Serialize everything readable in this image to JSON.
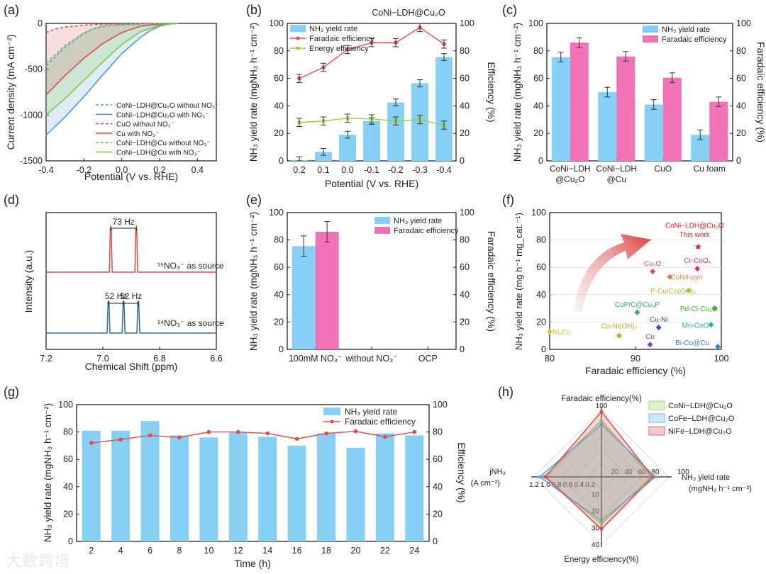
{
  "watermark": "大数跨境",
  "chart_data": [
    {
      "panel": "(a)",
      "type": "line",
      "xlabel": "Potential (V vs. RHE)",
      "ylabel": "Current density (mA cm⁻²)",
      "xlim": [
        -0.4,
        0.5
      ],
      "ylim": [
        -1500,
        0
      ],
      "xticks": [
        "-0.4",
        "-0.2",
        "0.0",
        "0.2",
        "0.4"
      ],
      "yticks": [
        "0",
        "-500",
        "-1000",
        "-1500"
      ],
      "series": [
        {
          "name": "CoNi−LDH@Cu₂O without NO₃⁻",
          "color": "#4a9be0",
          "dash": true,
          "x": [
            -0.4,
            -0.3,
            -0.2,
            -0.15,
            -0.1,
            0.0,
            0.1,
            0.2,
            0.3
          ],
          "y": [
            -460,
            -260,
            -110,
            -60,
            -30,
            -15,
            -8,
            -3,
            0
          ]
        },
        {
          "name": "CoNi−LDH@Cu₂O with NO₃⁻",
          "color": "#4a9be0",
          "dash": false,
          "x": [
            -0.4,
            -0.3,
            -0.2,
            -0.1,
            0.0,
            0.1,
            0.15,
            0.2,
            0.25,
            0.3
          ],
          "y": [
            -1220,
            -1020,
            -800,
            -560,
            -330,
            -150,
            -80,
            -30,
            -8,
            0
          ]
        },
        {
          "name": "CuO without NO₃⁻",
          "color": "#e04a4a",
          "dash": true,
          "x": [
            -0.4,
            -0.35,
            -0.3,
            -0.2,
            -0.1,
            0.0,
            0.1,
            0.2,
            0.3
          ],
          "y": [
            -100,
            -60,
            -40,
            -20,
            -10,
            -5,
            -2,
            -1,
            0
          ]
        },
        {
          "name": "Cu with NO₃⁻",
          "color": "#e04a4a",
          "dash": false,
          "x": [
            -0.4,
            -0.3,
            -0.2,
            -0.1,
            0.0,
            0.1,
            0.2,
            0.3
          ],
          "y": [
            -780,
            -570,
            -380,
            -220,
            -100,
            -30,
            -8,
            0
          ]
        },
        {
          "name": "CoNi−LDH@Cu without NO₃⁻",
          "color": "#7cc63a",
          "dash": true,
          "x": [
            -0.4,
            -0.3,
            -0.2,
            -0.15,
            -0.1,
            0.0,
            0.1,
            0.2,
            0.3
          ],
          "y": [
            -430,
            -240,
            -100,
            -55,
            -28,
            -12,
            -6,
            -2,
            0
          ]
        },
        {
          "name": "CoNi−LDH@Cu with NO₃⁻",
          "color": "#7cc63a",
          "dash": false,
          "x": [
            -0.4,
            -0.3,
            -0.2,
            -0.1,
            0.0,
            0.1,
            0.2,
            0.25,
            0.3
          ],
          "y": [
            -1000,
            -820,
            -620,
            -420,
            -230,
            -90,
            -20,
            -5,
            0
          ]
        }
      ]
    },
    {
      "panel": "(b)",
      "type": "bar",
      "title": "CoNi−LDH@Cu₂O",
      "xlabel": "Potential (V vs. RHE)",
      "ylabel": "NH₃ yield rate (mgNH₃ h⁻¹ cm⁻²)",
      "y2label": "Efficiency (%)",
      "categories": [
        "0.2",
        "0.1",
        "0.0",
        "-0.1",
        "-0.2",
        "-0.3",
        "-0.4"
      ],
      "ylim": [
        0,
        100
      ],
      "y2lim": [
        0,
        100
      ],
      "series": [
        {
          "name": "NH₃ yield rate",
          "color": "#86cff5",
          "values": [
            0.5,
            6.5,
            19,
            29,
            42.5,
            56.5,
            75.5
          ]
        },
        {
          "name": "Faradaic efficiency",
          "color": "#e84a4a",
          "values": [
            60,
            68,
            81,
            86,
            86,
            97,
            85
          ]
        },
        {
          "name": "Energy efficiency",
          "color": "#9ad43a",
          "values": [
            28,
            29,
            31,
            30.5,
            29,
            30,
            26
          ]
        }
      ]
    },
    {
      "panel": "(c)",
      "type": "bar",
      "ylabel": "NH₃ yield rate (mgNH₃ h⁻¹ cm⁻²)",
      "y2label": "Faradaic efficiency (%)",
      "ylim": [
        0,
        100
      ],
      "y2lim": [
        0,
        100
      ],
      "categories": [
        "CoNi−LDH|@Cu₂O",
        "CoNi−LDH|@Cu",
        "CuO",
        "Cu foam"
      ],
      "series": [
        {
          "name": "NH₃ yield rate",
          "color": "#86cff5",
          "values": [
            75.5,
            50,
            41,
            19
          ]
        },
        {
          "name": "Faradaic efficiency",
          "color": "#f272b8",
          "values": [
            86,
            76,
            60.5,
            43
          ]
        }
      ]
    },
    {
      "panel": "(d)",
      "type": "line",
      "xlabel": "Chemical Shift (ppm)",
      "ylabel": "Intensity (a.u.)",
      "xlim": [
        7.2,
        6.6
      ],
      "xticks": [
        "7.2",
        "7.0",
        "6.8",
        "6.6"
      ],
      "labels": {
        "top": "¹⁵NO₃⁻ as source",
        "bottom": "¹⁴NO₃⁻ as source",
        "split_top": "73 Hz",
        "split_bottom": [
          "52 Hz",
          "52 Hz"
        ]
      },
      "series": [
        {
          "name": "¹⁵NO₃⁻",
          "color": "#e04a4a",
          "peaks": [
            6.972,
            6.882
          ]
        },
        {
          "name": "¹⁴NO₃⁻",
          "color": "#2f6fa8",
          "peaks": [
            6.98,
            6.927,
            6.875
          ]
        }
      ]
    },
    {
      "panel": "(e)",
      "type": "bar",
      "ylabel": "NH₃ yield rate (mgNH₃ h⁻¹ cm⁻²)",
      "y2label": "Faradaic efficiency (%)",
      "ylim": [
        0,
        100
      ],
      "y2lim": [
        0,
        100
      ],
      "categories": [
        "100mM NO₃⁻",
        "without NO₃⁻",
        "OCP"
      ],
      "series": [
        {
          "name": "NH₃ yield rate",
          "color": "#86cff5",
          "values": [
            75.5,
            0,
            0
          ]
        },
        {
          "name": "Faradaic efficiency",
          "color": "#f272b8",
          "values": [
            86,
            0,
            0
          ]
        }
      ]
    },
    {
      "panel": "(f)",
      "type": "scatter",
      "xlabel": "Faradaic efficiency (%)",
      "ylabel": "NH₃ yield rate (mg h⁻¹ mg_cat.⁻¹)",
      "xlim": [
        80,
        100
      ],
      "ylim": [
        0,
        100
      ],
      "points": [
        {
          "label": "CoNi−LDH@Cu₂O|This work",
          "x": 97.3,
          "y": 75.5,
          "color": "#e02020"
        },
        {
          "label": "Cu₂O",
          "x": 92,
          "y": 57,
          "color": "#e05050"
        },
        {
          "label": "Cr-CoOₓ",
          "x": 97.2,
          "y": 59,
          "color": "#d03090"
        },
        {
          "label": "CoN4-pyrr",
          "x": 94,
          "y": 53,
          "color": "#e08040"
        },
        {
          "label": "P-Cu/Co(OH)₂",
          "x": 96.2,
          "y": 43,
          "color": "#b0c030"
        },
        {
          "label": "CoP/C@Cu₃P",
          "x": 90.2,
          "y": 27,
          "color": "#30b060"
        },
        {
          "label": "Pd-Cl-Cu₂O",
          "x": 99.2,
          "y": 30,
          "color": "#40b030"
        },
        {
          "label": "Cu-Ni",
          "x": 92.7,
          "y": 16,
          "color": "#3050c0"
        },
        {
          "label": "Mn-CoO",
          "x": 98.8,
          "y": 18,
          "color": "#20b0c0"
        },
        {
          "label": "Cu-Ni(OH)₂",
          "x": 88.1,
          "y": 10,
          "color": "#d0a030"
        },
        {
          "label": "Cu",
          "x": 91.7,
          "y": 3.5,
          "color": "#9040c0"
        },
        {
          "label": "Bi-Co@Cu",
          "x": 99.6,
          "y": 2,
          "color": "#3080e0"
        },
        {
          "label": "Ni₁Cu",
          "x": 80,
          "y": 13,
          "color": "#e0c020"
        }
      ]
    },
    {
      "panel": "(g)",
      "type": "bar",
      "xlabel": "Time (h)",
      "ylabel": "NH₃ yield rate (mgNH₃ h⁻¹ cm⁻²)",
      "y2label": "Efficiency (%)",
      "ylim": [
        0,
        100
      ],
      "y2lim": [
        0,
        100
      ],
      "categories": [
        "2",
        "4",
        "6",
        "8",
        "10",
        "12",
        "14",
        "16",
        "18",
        "20",
        "22",
        "24"
      ],
      "series": [
        {
          "name": "NH₃ yield rate",
          "color": "#86cff5",
          "values": [
            81,
            81,
            88,
            77.5,
            76,
            79.5,
            76.5,
            70,
            79,
            68.5,
            79,
            77.5
          ]
        },
        {
          "name": "Faradaic efficiency",
          "color": "#e84a4a",
          "values": [
            72,
            74.5,
            77.5,
            76,
            80,
            80,
            79,
            75,
            79,
            80.5,
            76.5,
            80
          ]
        }
      ]
    },
    {
      "panel": "(h)",
      "type": "radar",
      "axes": {
        "top": "Faradaic efficiency(%)",
        "right": "NH₃ yield rate|(mgNH₃ h⁻¹ cm⁻²)",
        "bottom": "Energy efficiency(%)",
        "left": "jNH₃|(A cm⁻²)"
      },
      "scales": {
        "top": [
          0,
          100
        ],
        "right": [
          0,
          100
        ],
        "bottom": [
          0,
          40
        ],
        "left": [
          0,
          1.2
        ]
      },
      "series": [
        {
          "name": "CoNi−LDH@Cu₂O",
          "color": "#9ccc65",
          "values": {
            "top": 84,
            "right": 74,
            "bottom": 28,
            "left": 1.02
          }
        },
        {
          "name": "CoFe−LDH@Cu₂O",
          "color": "#5ab0e0",
          "values": {
            "top": 78,
            "right": 80,
            "bottom": 26,
            "left": 1.1
          }
        },
        {
          "name": "NiFe−LDH@Cu₂O",
          "color": "#e05050",
          "values": {
            "top": 97,
            "right": 76,
            "bottom": 31,
            "left": 1.0
          }
        }
      ]
    }
  ]
}
